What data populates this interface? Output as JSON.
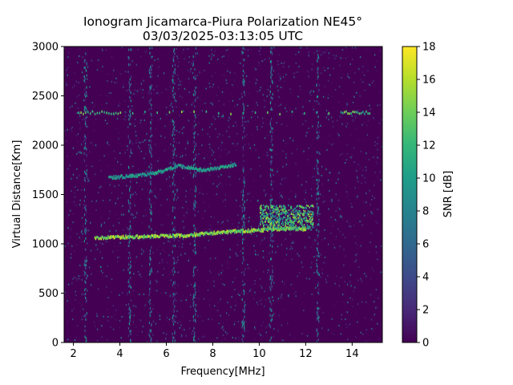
{
  "chart_data": {
    "type": "heatmap",
    "title": "Ionogram Jicamarca-Piura Polarization NE45°",
    "subtitle": "03/03/2025-03:13:05 UTC",
    "xlabel": "Frequency[MHz]",
    "ylabel": "Virtual Distance[Km]",
    "xlim": [
      1.6,
      15.3
    ],
    "ylim": [
      0,
      3000
    ],
    "x_ticks": [
      2,
      4,
      6,
      8,
      10,
      12,
      14
    ],
    "x_tick_labels": [
      "2",
      "4",
      "6",
      "8",
      "10",
      "12",
      "14"
    ],
    "y_ticks": [
      0,
      500,
      1000,
      1500,
      2000,
      2500,
      3000
    ],
    "y_tick_labels": [
      "0",
      "500",
      "1000",
      "1500",
      "2000",
      "2500",
      "3000"
    ],
    "colorbar": {
      "label": "SNR [dB]",
      "range": [
        0,
        18
      ],
      "ticks": [
        0,
        2,
        4,
        6,
        8,
        10,
        12,
        14,
        16,
        18
      ],
      "tick_labels": [
        "0",
        "2",
        "4",
        "6",
        "8",
        "10",
        "12",
        "14",
        "16",
        "18"
      ],
      "colormap": "viridis"
    },
    "grid": false,
    "traces": [
      {
        "frequency_mhz": [
          2.9,
          3.5,
          4.0,
          4.5,
          5.0,
          5.5,
          6.0,
          6.5,
          7.0,
          7.5,
          8.0,
          8.5,
          9.0,
          9.5,
          10.0,
          10.5,
          11.0,
          11.5,
          12.0
        ],
        "virtual_distance_km": [
          1075,
          1078,
          1080,
          1082,
          1085,
          1088,
          1090,
          1095,
          1100,
          1110,
          1120,
          1130,
          1140,
          1145,
          1150,
          1160,
          1165,
          1165,
          1160
        ],
        "snr_db": 17
      },
      {
        "frequency_mhz": [
          3.5,
          4.0,
          4.5,
          5.0,
          5.5,
          6.0,
          6.5,
          7.0,
          7.5,
          8.0,
          8.5,
          9.0
        ],
        "virtual_distance_km": [
          1680,
          1690,
          1700,
          1710,
          1730,
          1760,
          1800,
          1780,
          1760,
          1770,
          1790,
          1820
        ],
        "snr_db": 12
      },
      {
        "frequency_mhz": [
          2.2,
          4.0,
          13.5,
          14.8
        ],
        "virtual_distance_km": [
          2340,
          2340,
          2340,
          2340
        ],
        "snr_db": 15
      }
    ],
    "vertical_noise_bands_mhz": [
      2.5,
      4.4,
      5.3,
      6.3,
      7.2,
      9.3,
      10.5,
      12.5
    ],
    "blob": {
      "frequency_mhz": [
        10.0,
        12.3
      ],
      "virtual_distance_km": [
        1150,
        1400
      ],
      "snr_db": 16
    }
  }
}
